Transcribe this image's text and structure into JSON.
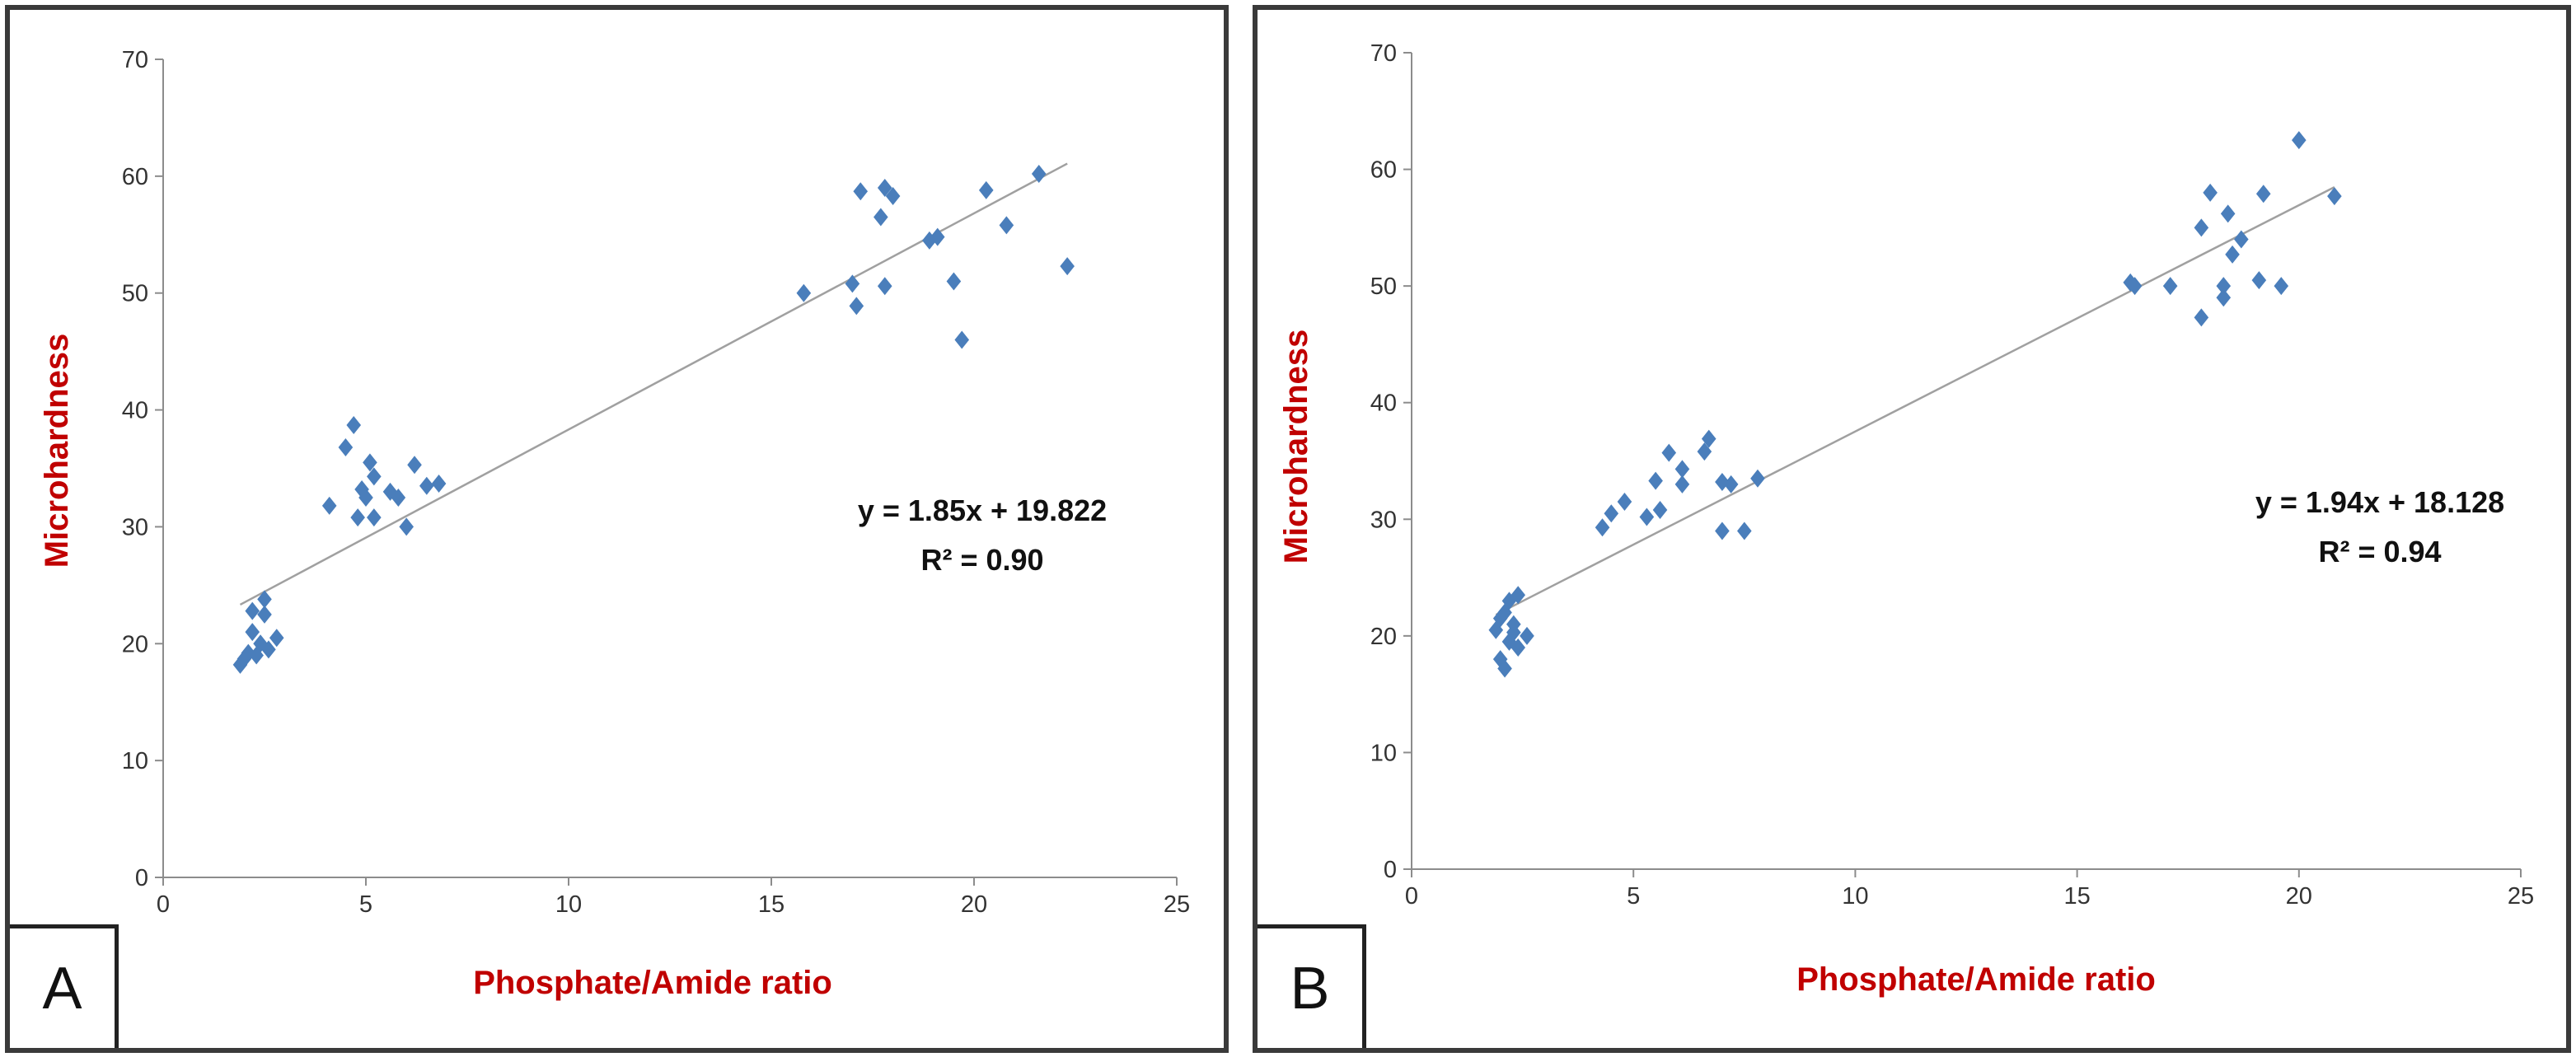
{
  "chart_data": [
    {
      "panel_label": "A",
      "type": "scatter",
      "xlabel": "Phosphate/Amide ratio",
      "ylabel": "Microhardness",
      "xlim": [
        0,
        25
      ],
      "ylim": [
        0,
        70
      ],
      "x_ticks": [
        "0",
        "5",
        "10",
        "15",
        "20",
        "25"
      ],
      "y_ticks": [
        "0",
        "10",
        "20",
        "30",
        "40",
        "50",
        "60",
        "70"
      ],
      "grid": false,
      "marker": "diamond",
      "marker_color": "#4a7ebb",
      "trendline_color": "#a0a0a0",
      "trendline": {
        "slope": 1.85,
        "intercept": 19.822,
        "x_range": [
          1.9,
          22.3
        ]
      },
      "equation": "y = 1.85x + 19.822",
      "r_squared": "R² = 0.90",
      "points": [
        [
          1.9,
          18.2
        ],
        [
          2.0,
          18.7
        ],
        [
          2.1,
          19.2
        ],
        [
          2.2,
          21.0
        ],
        [
          2.2,
          22.8
        ],
        [
          2.3,
          19.0
        ],
        [
          2.4,
          20.0
        ],
        [
          2.5,
          23.8
        ],
        [
          2.5,
          22.5
        ],
        [
          2.6,
          19.5
        ],
        [
          2.8,
          20.5
        ],
        [
          4.1,
          31.8
        ],
        [
          4.5,
          36.8
        ],
        [
          4.7,
          38.7
        ],
        [
          4.8,
          30.8
        ],
        [
          4.9,
          33.2
        ],
        [
          5.0,
          32.5
        ],
        [
          5.1,
          35.5
        ],
        [
          5.2,
          30.8
        ],
        [
          5.2,
          34.3
        ],
        [
          5.6,
          33.0
        ],
        [
          5.8,
          32.5
        ],
        [
          6.0,
          30.0
        ],
        [
          6.2,
          35.3
        ],
        [
          6.5,
          33.5
        ],
        [
          6.8,
          33.7
        ],
        [
          15.8,
          50.0
        ],
        [
          17.0,
          50.8
        ],
        [
          17.1,
          48.9
        ],
        [
          17.2,
          58.7
        ],
        [
          17.7,
          56.5
        ],
        [
          17.8,
          50.6
        ],
        [
          17.8,
          59.0
        ],
        [
          18.0,
          58.3
        ],
        [
          18.9,
          54.5
        ],
        [
          19.1,
          54.8
        ],
        [
          19.5,
          51.0
        ],
        [
          19.7,
          46.0
        ],
        [
          20.3,
          58.8
        ],
        [
          20.8,
          55.8
        ],
        [
          21.6,
          60.2
        ],
        [
          22.3,
          52.3
        ]
      ]
    },
    {
      "panel_label": "B",
      "type": "scatter",
      "xlabel": "Phosphate/Amide ratio",
      "ylabel": "Microhardness",
      "xlim": [
        0,
        25
      ],
      "ylim": [
        0,
        70
      ],
      "x_ticks": [
        "0",
        "5",
        "10",
        "15",
        "20",
        "25"
      ],
      "y_ticks": [
        "0",
        "10",
        "20",
        "30",
        "40",
        "50",
        "60",
        "70"
      ],
      "grid": false,
      "marker": "diamond",
      "marker_color": "#4a7ebb",
      "trendline_color": "#a0a0a0",
      "trendline": {
        "slope": 1.94,
        "intercept": 18.128,
        "x_range": [
          1.9,
          20.8
        ]
      },
      "equation": "y = 1.94x + 18.128",
      "r_squared": "R² = 0.94",
      "points": [
        [
          1.9,
          20.5
        ],
        [
          2.0,
          18.0
        ],
        [
          2.0,
          21.5
        ],
        [
          2.1,
          17.2
        ],
        [
          2.1,
          22.0
        ],
        [
          2.2,
          19.5
        ],
        [
          2.2,
          23.0
        ],
        [
          2.3,
          20.3
        ],
        [
          2.3,
          21.0
        ],
        [
          2.4,
          23.5
        ],
        [
          2.4,
          19.0
        ],
        [
          2.6,
          20.0
        ],
        [
          4.3,
          29.3
        ],
        [
          4.5,
          30.5
        ],
        [
          4.8,
          31.5
        ],
        [
          5.3,
          30.2
        ],
        [
          5.5,
          33.3
        ],
        [
          5.6,
          30.8
        ],
        [
          5.8,
          35.7
        ],
        [
          6.1,
          34.3
        ],
        [
          6.1,
          33.0
        ],
        [
          6.6,
          35.8
        ],
        [
          6.7,
          36.9
        ],
        [
          7.0,
          29.0
        ],
        [
          7.0,
          33.2
        ],
        [
          7.2,
          33.0
        ],
        [
          7.5,
          29.0
        ],
        [
          7.8,
          33.5
        ],
        [
          16.2,
          50.3
        ],
        [
          16.3,
          50.0
        ],
        [
          17.1,
          50.0
        ],
        [
          17.8,
          47.3
        ],
        [
          17.8,
          55.0
        ],
        [
          18.0,
          58.0
        ],
        [
          18.3,
          50.0
        ],
        [
          18.3,
          49.0
        ],
        [
          18.4,
          56.2
        ],
        [
          18.5,
          52.7
        ],
        [
          18.7,
          54.0
        ],
        [
          19.1,
          50.5
        ],
        [
          19.2,
          57.9
        ],
        [
          19.6,
          50.0
        ],
        [
          20.0,
          62.5
        ],
        [
          20.8,
          57.7
        ]
      ]
    }
  ]
}
